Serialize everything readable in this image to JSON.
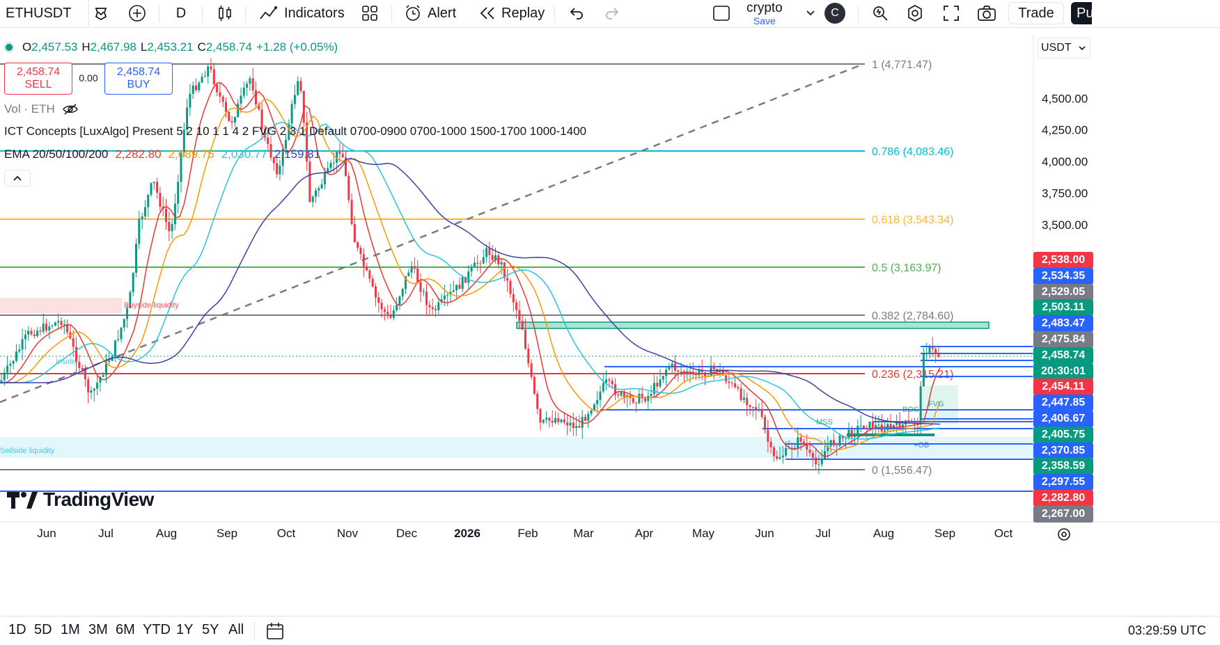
{
  "toolbar": {
    "symbol": "ETHUSDT",
    "interval": "D",
    "indicators_label": "Indicators",
    "alert_label": "Alert",
    "replay_label": "Replay",
    "layout_name": "crypto",
    "layout_save": "Save",
    "avatar_letter": "C",
    "trade_label": "Trade",
    "publish_label": "Pu"
  },
  "legend": {
    "o_label": "O",
    "o_value": "2,457.53",
    "h_label": "H",
    "h_value": "2,467.98",
    "l_label": "L",
    "l_value": "2,453.21",
    "c_label": "C",
    "c_value": "2,458.74",
    "change": "+1.28 (+0.05%)",
    "sell_price": "2,458.74",
    "sell_label": "SELL",
    "spread": "0.00",
    "buy_price": "2,458.74",
    "buy_label": "BUY",
    "vol_label": "Vol · ETH",
    "ict_label": "ICT Concepts [LuxAlgo] Present 5 2 10 1 1 4 2 FVG 2 3 1 Default 0700-0900 0700-1000 1500-1700 1000-1400",
    "ema_label": "EMA 20/50/100/200",
    "ema_values": [
      "2,282.80",
      "2,089.75",
      "2,030.77",
      "2,159.81"
    ]
  },
  "currency": "USDT",
  "fib_levels": [
    {
      "label": "1 (4,771.47)",
      "price": 4771.47,
      "color": "#787b86"
    },
    {
      "label": "0.786 (4,083.46)",
      "price": 4083.46,
      "color": "#00bcd4"
    },
    {
      "label": "0.618 (3,543.34)",
      "price": 3543.34,
      "color": "#f7b731"
    },
    {
      "label": "0.5 (3,163.97)",
      "price": 3163.97,
      "color": "#4caf50"
    },
    {
      "label": "0.382 (2,784.60)",
      "price": 2784.6,
      "color": "#787b86"
    },
    {
      "label": "0.236 (2,315.21)",
      "price": 2315.21,
      "color": "#e53935"
    },
    {
      "label": "0 (1,556.47)",
      "price": 1556.47,
      "color": "#787b86"
    }
  ],
  "price_axis_ticks": [
    "4,500.00",
    "4,250.00",
    "4,000.00",
    "3,750.00",
    "3,500.00"
  ],
  "price_labels": [
    {
      "text": "2,538.00",
      "color": "#f23645"
    },
    {
      "text": "2,534.35",
      "color": "#2962ff"
    },
    {
      "text": "2,529.05",
      "color": "#787b86"
    },
    {
      "text": "2,503.11",
      "color": "#089981"
    },
    {
      "text": "2,483.47",
      "color": "#2962ff"
    },
    {
      "text": "2,475.84",
      "color": "#787b86"
    },
    {
      "text": "2,458.74",
      "color": "#089981"
    },
    {
      "text": "20:30:01",
      "color": "#089981"
    },
    {
      "text": "2,454.11",
      "color": "#f23645"
    },
    {
      "text": "2,447.85",
      "color": "#2962ff"
    },
    {
      "text": "2,406.67",
      "color": "#2962ff"
    },
    {
      "text": "2,405.75",
      "color": "#089981"
    },
    {
      "text": "2,370.85",
      "color": "#2962ff"
    },
    {
      "text": "2,358.59",
      "color": "#089981"
    },
    {
      "text": "2,297.55",
      "color": "#2962ff"
    },
    {
      "text": "2,282.80",
      "color": "#f23645"
    },
    {
      "text": "2,267.00",
      "color": "#787b86"
    }
  ],
  "time_axis": [
    "Jun",
    "Jul",
    "Aug",
    "Sep",
    "Oct",
    "Nov",
    "Dec",
    "2026",
    "Feb",
    "Mar",
    "Apr",
    "May",
    "Jun",
    "Jul",
    "Aug",
    "Sep",
    "Oct"
  ],
  "annotations": {
    "buyside": "Buyside liquidity",
    "sellside": "Sellside liquidity",
    "inside": "Inside",
    "mss": "MSS",
    "bos": "BOS",
    "fvg": "FVG",
    "ob": "+OB"
  },
  "watermark": "TradingView",
  "ranges": [
    "1D",
    "5D",
    "1M",
    "3M",
    "6M",
    "YTD",
    "1Y",
    "5Y",
    "All"
  ],
  "clock": "03:29:59 UTC",
  "colors": {
    "up": "#089981",
    "down": "#f23645",
    "ema20": "#e53935",
    "ema50": "#ff9800",
    "ema100": "#26c6da",
    "ema200": "#3f3fa8"
  }
}
